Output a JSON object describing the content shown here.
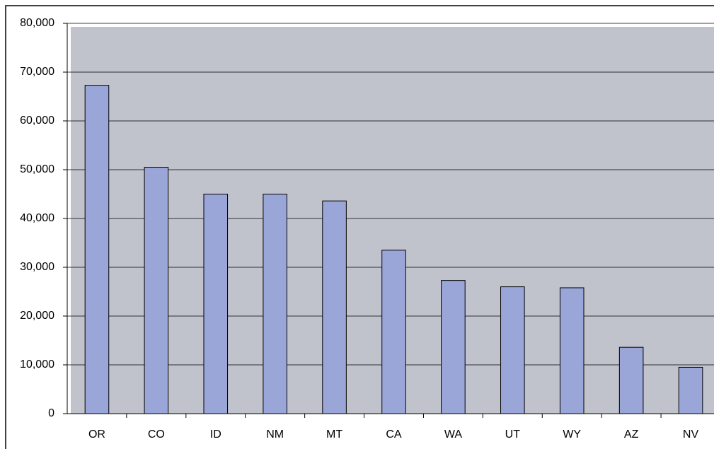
{
  "chart_data": {
    "type": "bar",
    "categories": [
      "OR",
      "CO",
      "ID",
      "NM",
      "MT",
      "CA",
      "WA",
      "UT",
      "WY",
      "AZ",
      "NV"
    ],
    "values": [
      67300,
      50500,
      45000,
      45000,
      43600,
      33500,
      27300,
      26000,
      25800,
      13600,
      9500
    ],
    "color": "#9ba6d8",
    "ylim": [
      0,
      80000
    ],
    "yticks": [
      0,
      {
        "value": 10000,
        "label": "10,000"
      },
      {
        "value": 20000,
        "label": "20,000"
      },
      {
        "value": 30000,
        "label": "30,000"
      },
      {
        "value": 40000,
        "label": "40,000"
      },
      {
        "value": 50000,
        "label": "50,000"
      },
      {
        "value": 60000,
        "label": "60,000"
      },
      {
        "value": 70000,
        "label": "70,000"
      },
      {
        "value": 80000,
        "label": "80,000"
      }
    ],
    "grid": true
  }
}
